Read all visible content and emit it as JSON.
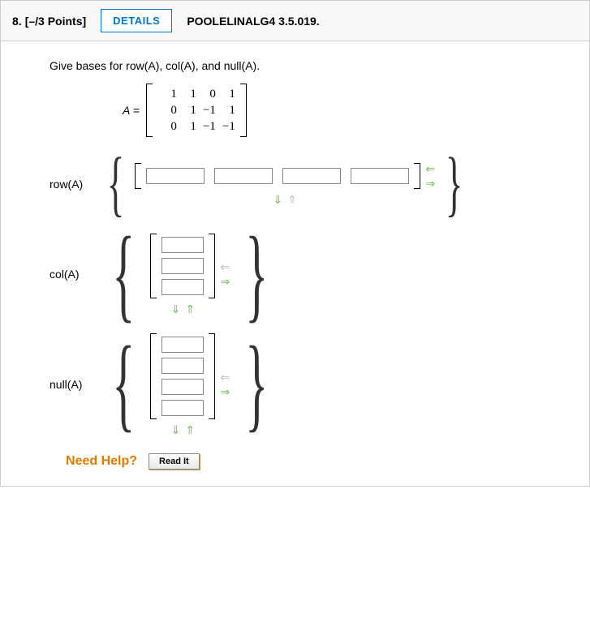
{
  "header": {
    "question_number": "8.",
    "points": "[–/3 Points]",
    "details_label": "DETAILS",
    "reference": "POOLELINALG4 3.5.019."
  },
  "prompt": "Give bases for row(A), col(A), and null(A).",
  "matrix": {
    "label": "A =",
    "rows": [
      [
        "1",
        "1",
        "0",
        "1"
      ],
      [
        "0",
        "1",
        "−1",
        "1"
      ],
      [
        "0",
        "1",
        "−1",
        "−1"
      ]
    ]
  },
  "sections": {
    "row": {
      "label": "row(A)",
      "input_count": 4,
      "orientation": "horizontal"
    },
    "col": {
      "label": "col(A)",
      "input_count": 3,
      "orientation": "vertical"
    },
    "null": {
      "label": "null(A)",
      "input_count": 4,
      "orientation": "vertical"
    }
  },
  "arrows": {
    "left": "⇐",
    "right": "⇒",
    "down": "⇓",
    "up": "⇑"
  },
  "help": {
    "label": "Need Help?",
    "readit": "Read It"
  },
  "colors": {
    "accent_blue": "#0077c8",
    "accent_green": "#6fbf4b",
    "accent_orange": "#e07b00",
    "border_gray": "#cccccc"
  }
}
